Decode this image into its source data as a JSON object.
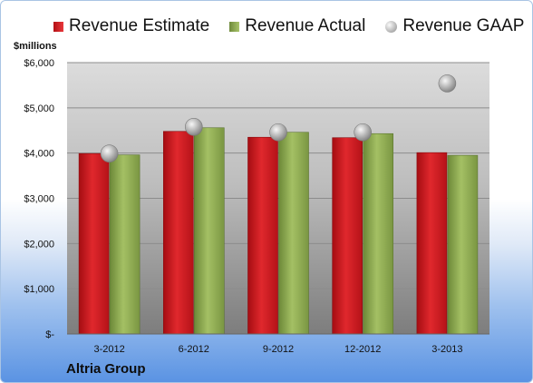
{
  "chart_data": {
    "type": "bar",
    "categories": [
      "3-2012",
      "6-2012",
      "9-2012",
      "12-2012",
      "3-2013"
    ],
    "series": [
      {
        "name": "Revenue Estimate",
        "kind": "bar",
        "color": "#c8161d",
        "values": [
          3990,
          4480,
          4350,
          4340,
          4010
        ]
      },
      {
        "name": "Revenue Actual",
        "kind": "bar",
        "color": "#8fae52",
        "values": [
          3960,
          4560,
          4460,
          4430,
          3950
        ]
      },
      {
        "name": "Revenue GAAP",
        "kind": "marker",
        "color": "#b8b8b8",
        "values": [
          3990,
          4580,
          4460,
          4460,
          5540
        ]
      }
    ],
    "ylabel": "$millions",
    "ylim": [
      0,
      6000
    ],
    "yticks": [
      0,
      1000,
      2000,
      3000,
      4000,
      5000,
      6000
    ],
    "ytick_labels": [
      "$-",
      "$1,000",
      "$2,000",
      "$3,000",
      "$4,000",
      "$5,000",
      "$6,000"
    ],
    "grid": true,
    "legend_position": "top",
    "company": "Altria Group"
  }
}
